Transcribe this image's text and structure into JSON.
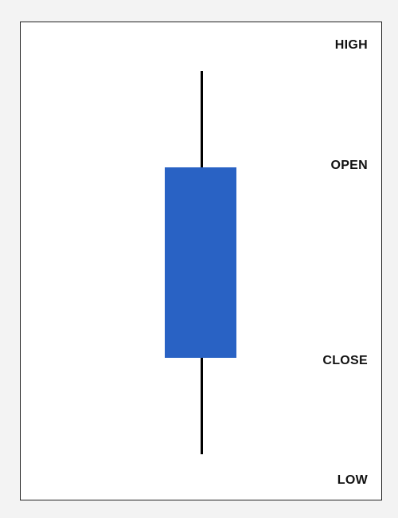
{
  "labels": {
    "high": "HIGH",
    "open": "OPEN",
    "close": "CLOSE",
    "low": "LOW"
  },
  "colors": {
    "body": "#2962c4",
    "wick": "#000000",
    "frame_border": "#222222",
    "background": "#ffffff"
  }
}
